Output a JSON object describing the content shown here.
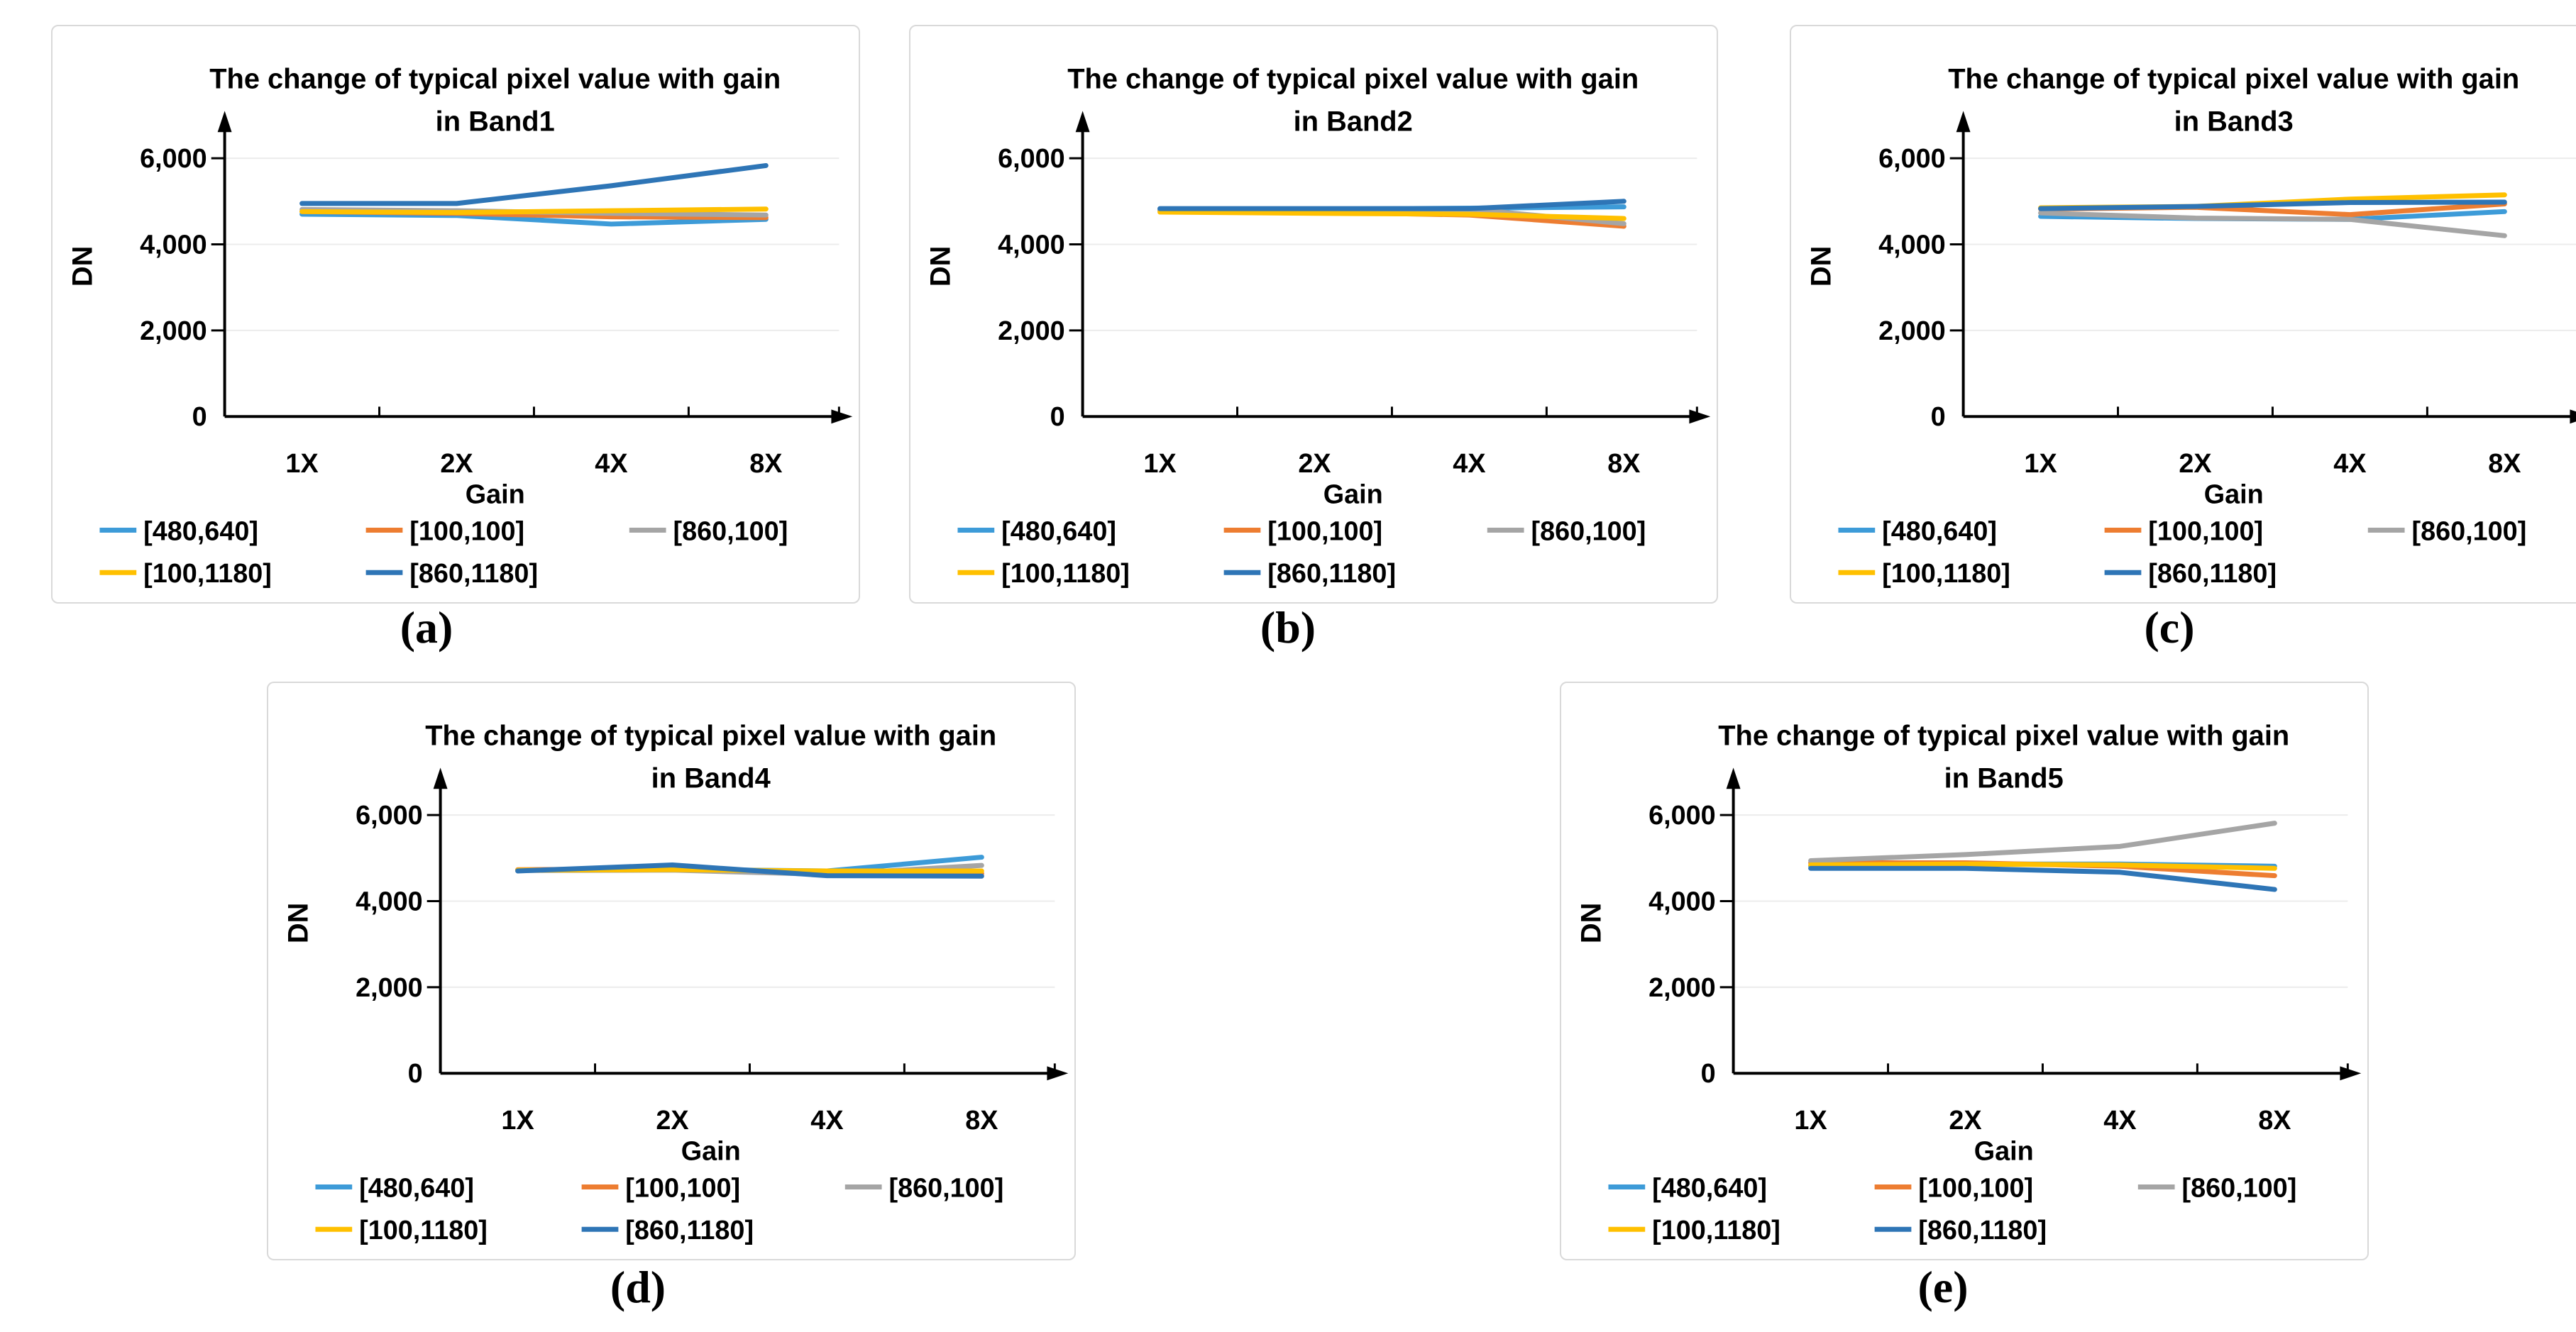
{
  "figure": {
    "background": "#ffffff",
    "panel_border_color": "#d9d9d9",
    "grid_color": "#ececec",
    "axis_color": "#000000",
    "text_color": "#000000",
    "categories": [
      "1X",
      "2X",
      "4X",
      "8X"
    ],
    "xlabel": "Gain",
    "ylabel": "DN",
    "ytick_labels": [
      "0",
      "2,000",
      "4,000",
      "6,000"
    ],
    "ytick_values": [
      0,
      2000,
      4000,
      6000
    ],
    "series": [
      {
        "label": "[480,640]",
        "color": "#3d9bd8"
      },
      {
        "label": "[100,100]",
        "color": "#ed7d31"
      },
      {
        "label": "[860,100]",
        "color": "#a5a5a5"
      },
      {
        "label": "[100,1180]",
        "color": "#ffc000"
      },
      {
        "label": "[860,1180]",
        "color": "#2e75b6"
      }
    ]
  },
  "chart_data": [
    {
      "type": "line",
      "panel_label": "(a)",
      "title_line1": "The change of typical pixel value with gain",
      "title_line2": "in Band1",
      "xlabel": "Gain",
      "ylabel": "DN",
      "ylim": [
        0,
        7000
      ],
      "grid": "horizontal",
      "legend_position": "bottom",
      "categories": [
        "1X",
        "2X",
        "4X",
        "8X"
      ],
      "series": [
        {
          "name": "[480,640]",
          "values": [
            4700,
            4670,
            4470,
            4580
          ]
        },
        {
          "name": "[100,100]",
          "values": [
            4760,
            4720,
            4640,
            4620
          ]
        },
        {
          "name": "[860,100]",
          "values": [
            4810,
            4780,
            4720,
            4680
          ]
        },
        {
          "name": "[100,1180]",
          "values": [
            4760,
            4740,
            4780,
            4820
          ]
        },
        {
          "name": "[860,1180]",
          "values": [
            4950,
            4950,
            5360,
            5830
          ]
        }
      ]
    },
    {
      "type": "line",
      "panel_label": "(b)",
      "title_line1": "The change of typical pixel value with gain",
      "title_line2": "in Band2",
      "xlabel": "Gain",
      "ylabel": "DN",
      "ylim": [
        0,
        7000
      ],
      "grid": "horizontal",
      "legend_position": "bottom",
      "categories": [
        "1X",
        "2X",
        "4X",
        "8X"
      ],
      "series": [
        {
          "name": "[480,640]",
          "values": [
            4800,
            4820,
            4840,
            4870
          ]
        },
        {
          "name": "[100,100]",
          "values": [
            4780,
            4750,
            4680,
            4420
          ]
        },
        {
          "name": "[860,100]",
          "values": [
            4790,
            4800,
            4820,
            4480
          ]
        },
        {
          "name": "[100,1180]",
          "values": [
            4750,
            4720,
            4700,
            4600
          ]
        },
        {
          "name": "[860,1180]",
          "values": [
            4830,
            4830,
            4830,
            5000
          ]
        }
      ]
    },
    {
      "type": "line",
      "panel_label": "(c)",
      "title_line1": "The change of typical pixel value with gain",
      "title_line2": "in Band3",
      "xlabel": "Gain",
      "ylabel": "DN",
      "ylim": [
        0,
        7000
      ],
      "grid": "horizontal",
      "legend_position": "bottom",
      "categories": [
        "1X",
        "2X",
        "4X",
        "8X"
      ],
      "series": [
        {
          "name": "[480,640]",
          "values": [
            4650,
            4600,
            4580,
            4760
          ]
        },
        {
          "name": "[100,100]",
          "values": [
            4820,
            4860,
            4690,
            4940
          ]
        },
        {
          "name": "[860,100]",
          "values": [
            4730,
            4610,
            4580,
            4200
          ]
        },
        {
          "name": "[100,1180]",
          "values": [
            4850,
            4880,
            5050,
            5150
          ]
        },
        {
          "name": "[860,1180]",
          "values": [
            4830,
            4880,
            4970,
            4980
          ]
        }
      ]
    },
    {
      "type": "line",
      "panel_label": "(d)",
      "title_line1": "The change of typical pixel value with gain",
      "title_line2": "in Band4",
      "xlabel": "Gain",
      "ylabel": "DN",
      "ylim": [
        0,
        7000
      ],
      "grid": "horizontal",
      "legend_position": "bottom",
      "categories": [
        "1X",
        "2X",
        "4X",
        "8X"
      ],
      "series": [
        {
          "name": "[480,640]",
          "values": [
            4720,
            4740,
            4700,
            5020
          ]
        },
        {
          "name": "[100,100]",
          "values": [
            4730,
            4750,
            4670,
            4640
          ]
        },
        {
          "name": "[860,100]",
          "values": [
            4710,
            4720,
            4620,
            4830
          ]
        },
        {
          "name": "[100,1180]",
          "values": [
            4720,
            4730,
            4700,
            4700
          ]
        },
        {
          "name": "[860,1180]",
          "values": [
            4700,
            4840,
            4590,
            4580
          ]
        }
      ]
    },
    {
      "type": "line",
      "panel_label": "(e)",
      "title_line1": "The change of typical pixel value with gain",
      "title_line2": "in Band5",
      "xlabel": "Gain",
      "ylabel": "DN",
      "ylim": [
        0,
        7000
      ],
      "grid": "horizontal",
      "legend_position": "bottom",
      "categories": [
        "1X",
        "2X",
        "4X",
        "8X"
      ],
      "series": [
        {
          "name": "[480,640]",
          "values": [
            4810,
            4860,
            4860,
            4810
          ]
        },
        {
          "name": "[100,100]",
          "values": [
            4890,
            4890,
            4810,
            4590
          ]
        },
        {
          "name": "[860,100]",
          "values": [
            4940,
            5080,
            5270,
            5810
          ]
        },
        {
          "name": "[100,1180]",
          "values": [
            4840,
            4860,
            4840,
            4760
          ]
        },
        {
          "name": "[860,1180]",
          "values": [
            4760,
            4760,
            4670,
            4270
          ]
        }
      ]
    }
  ]
}
